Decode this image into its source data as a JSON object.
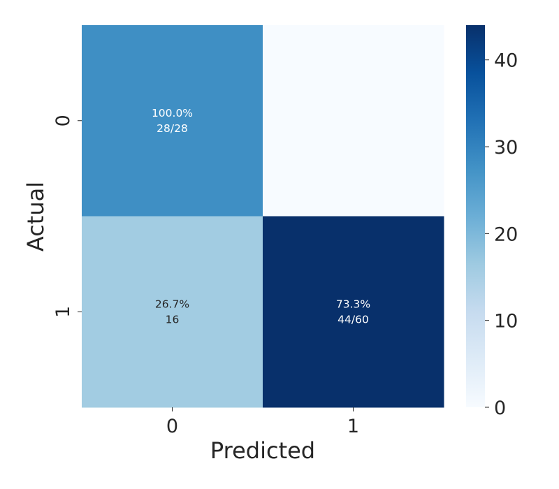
{
  "chart_data": {
    "type": "heatmap",
    "xlabel": "Predicted",
    "ylabel": "Actual",
    "x_categories": [
      "0",
      "1"
    ],
    "y_categories": [
      "0",
      "1"
    ],
    "values": [
      [
        28,
        0
      ],
      [
        16,
        44
      ]
    ],
    "annotations": [
      [
        [
          "100.0%",
          "28/28"
        ],
        [
          "",
          ""
        ]
      ],
      [
        [
          "26.7%",
          "16"
        ],
        [
          "73.3%",
          "44/60"
        ]
      ]
    ],
    "colormap": "Blues",
    "vmin": 0,
    "vmax": 44,
    "colorbar_ticks": [
      "0",
      "10",
      "20",
      "30",
      "40"
    ]
  }
}
